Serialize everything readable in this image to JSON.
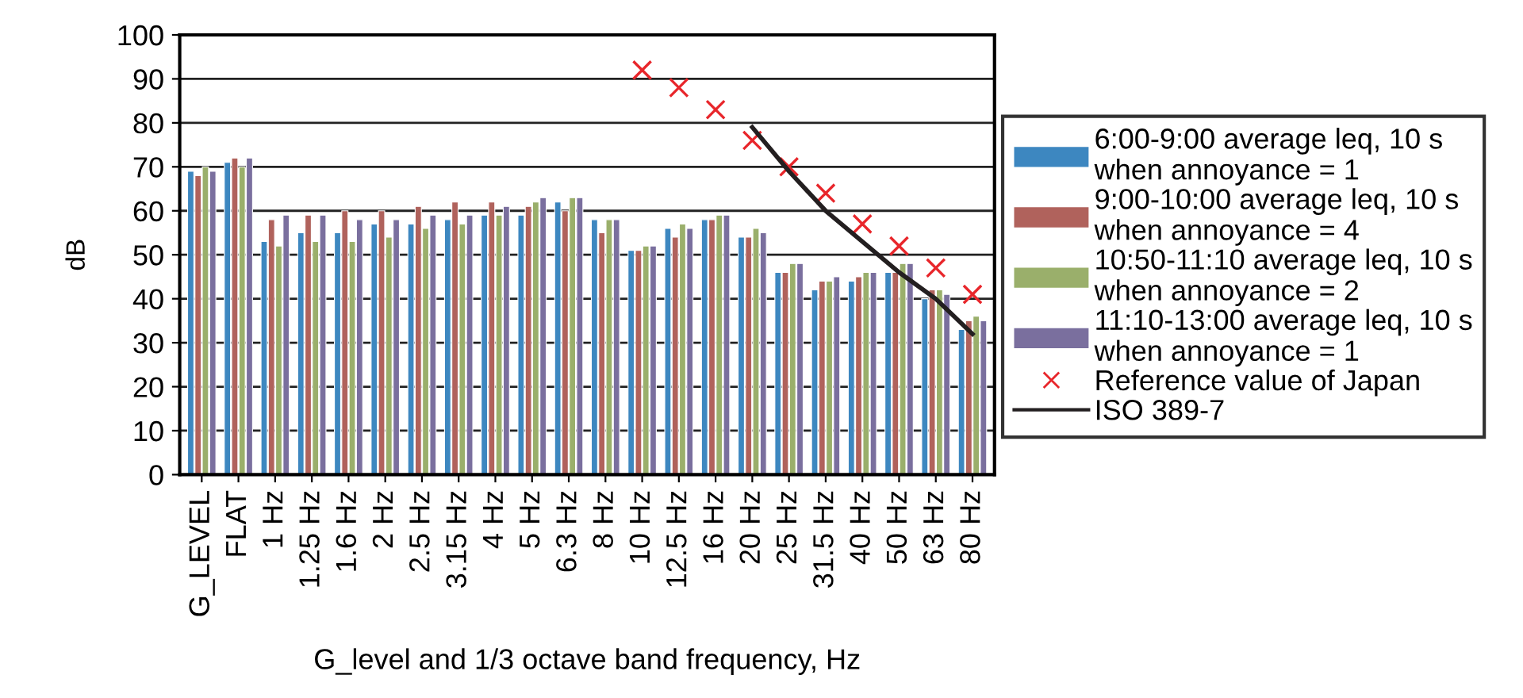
{
  "chart_data": {
    "type": "bar",
    "xlabel": "G_level and 1/3 octave band frequency, Hz",
    "ylabel": "dB",
    "categories": [
      "G_LEVEL",
      "FLAT",
      "1 Hz",
      "1.25 Hz",
      "1.6 Hz",
      "2 Hz",
      "2.5 Hz",
      "3.15 Hz",
      "4 Hz",
      "5 Hz",
      "6.3 Hz",
      "8 Hz",
      "10 Hz",
      "12.5 Hz",
      "16 Hz",
      "20 Hz",
      "25 Hz",
      "31.5 Hz",
      "40 Hz",
      "50 Hz",
      "63 Hz",
      "80 Hz"
    ],
    "series": [
      {
        "name": "6:00-9:00 average leq, 10 s\nwhen annoyance = 1",
        "color": "#3d87c0",
        "values": [
          69,
          71,
          53,
          55,
          55,
          57,
          57,
          58,
          59,
          59,
          62,
          58,
          51,
          56,
          58,
          54,
          46,
          42,
          44,
          46,
          40,
          33
        ]
      },
      {
        "name": "9:00-10:00 average leq, 10 s\nwhen annoyance = 4",
        "color": "#b0625c",
        "values": [
          68,
          72,
          58,
          59,
          60,
          60,
          61,
          62,
          62,
          61,
          60,
          55,
          51,
          54,
          58,
          54,
          46,
          44,
          45,
          46,
          42,
          35
        ]
      },
      {
        "name": "10:50-11:10 average leq, 10 s\nwhen annoyance = 2",
        "color": "#9aaf6b",
        "values": [
          70,
          70,
          52,
          53,
          53,
          54,
          56,
          57,
          59,
          62,
          63,
          58,
          52,
          57,
          59,
          56,
          48,
          44,
          46,
          48,
          42,
          36
        ]
      },
      {
        "name": "11:10-13:00 average leq, 10 s\nwhen annoyance = 1",
        "color": "#7a6f9e",
        "values": [
          69,
          72,
          59,
          59,
          58,
          58,
          59,
          59,
          61,
          63,
          63,
          58,
          52,
          56,
          59,
          55,
          48,
          45,
          46,
          48,
          41,
          35
        ]
      },
      {
        "name": "Reference value of Japan",
        "type": "scatter",
        "marker": "cross",
        "color": "#e8262b",
        "values": [
          null,
          null,
          null,
          null,
          null,
          null,
          null,
          null,
          null,
          null,
          null,
          null,
          92,
          88,
          83,
          76,
          70,
          64,
          57,
          52,
          47,
          41
        ]
      },
      {
        "name": "ISO 389-7",
        "type": "line",
        "marker": "none",
        "color": "#231f20",
        "values": [
          null,
          null,
          null,
          null,
          null,
          null,
          null,
          null,
          null,
          null,
          null,
          null,
          null,
          null,
          null,
          79,
          69,
          60,
          53,
          46,
          40,
          32
        ]
      }
    ],
    "ylim": [
      0,
      100
    ],
    "yticks": [
      0,
      10,
      20,
      30,
      40,
      50,
      60,
      70,
      80,
      90,
      100
    ],
    "grid": "y",
    "legend": "right"
  }
}
